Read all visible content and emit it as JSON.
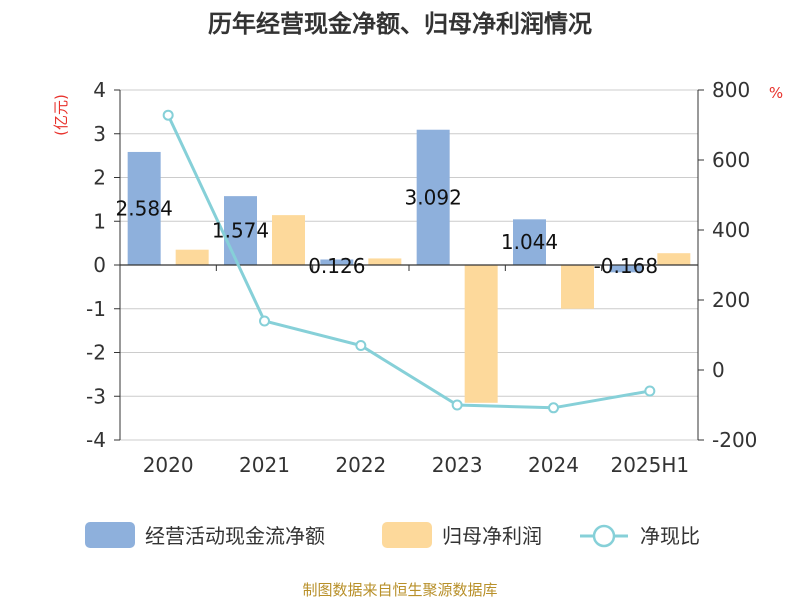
{
  "title": "历年经营现金净额、归母净利润情况",
  "source": "制图数据来自恒生聚源数据库",
  "chart_data": {
    "type": "bar",
    "categories": [
      "2020",
      "2021",
      "2022",
      "2023",
      "2024",
      "2025H1"
    ],
    "y_left": {
      "unit": "(亿元)",
      "min": -4,
      "max": 4,
      "ticks": [
        4,
        3,
        2,
        1,
        0,
        -1,
        -2,
        -3,
        -4
      ]
    },
    "y_right": {
      "unit": "%",
      "min": -200,
      "max": 800,
      "ticks": [
        800,
        600,
        400,
        200,
        0,
        -200
      ]
    },
    "grid": true,
    "legend_position": "bottom",
    "series": [
      {
        "name": "经营活动现金流净额",
        "type": "bar",
        "axis": "left",
        "color": "#8eb0dc",
        "values": [
          2.584,
          1.574,
          0.126,
          3.092,
          1.044,
          -0.168
        ],
        "labels": [
          "2.584",
          "1.574",
          "0.126",
          "3.092",
          "1.044",
          "-0.168"
        ]
      },
      {
        "name": "归母净利润",
        "type": "bar",
        "axis": "left",
        "color": "#fdd99b",
        "values": [
          0.35,
          1.14,
          0.15,
          -3.15,
          -1.0,
          0.27
        ]
      },
      {
        "name": "净现比",
        "type": "line",
        "axis": "right",
        "color": "#86d0d8",
        "values": [
          728,
          140,
          70,
          -100,
          -108,
          -60
        ]
      }
    ]
  }
}
